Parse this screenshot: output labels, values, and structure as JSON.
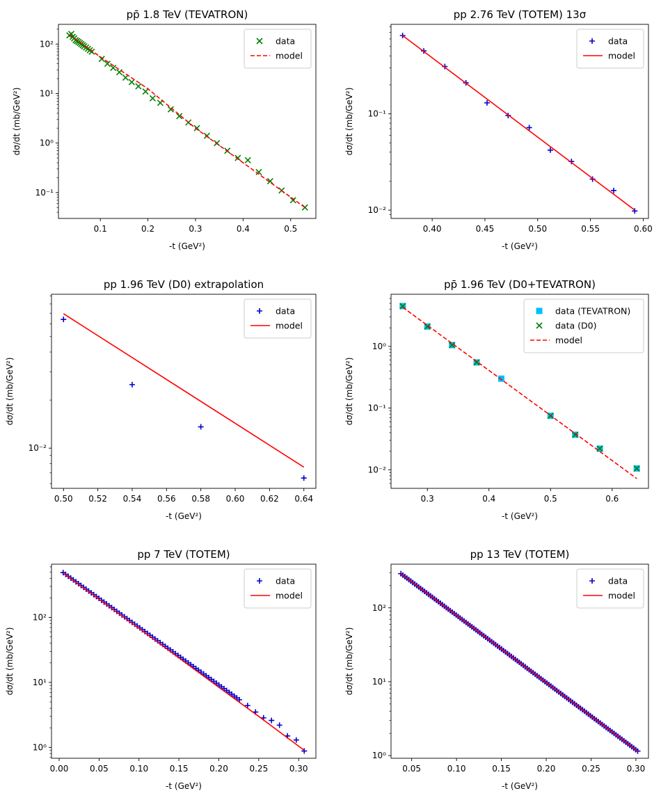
{
  "chart_data": [
    {
      "type": "scatter",
      "title": "pp̄ 1.8 TeV (TEVATRON)",
      "xlabel": "-t (GeV²)",
      "ylabel": "dσ/dt (mb/GeV²)",
      "yscale": "log",
      "xlim": [
        0.012,
        0.553
      ],
      "ylim": [
        0.03,
        250
      ],
      "xticks": [
        0.1,
        0.2,
        0.3,
        0.4,
        0.5
      ],
      "xticklabels": [
        "0.1",
        "0.2",
        "0.3",
        "0.4",
        "0.5"
      ],
      "yticks": [
        0.1,
        1,
        10,
        100
      ],
      "yticklabels": [
        "10⁻¹",
        "10⁰",
        "10¹",
        "10²"
      ],
      "legend_position": "top-right",
      "series": [
        {
          "name": "data",
          "kind": "points",
          "marker": "x",
          "color": "#008000",
          "x": [
            0.035,
            0.039,
            0.042,
            0.045,
            0.048,
            0.051,
            0.054,
            0.057,
            0.06,
            0.063,
            0.066,
            0.07,
            0.074,
            0.078,
            0.082,
            0.103,
            0.115,
            0.127,
            0.14,
            0.153,
            0.166,
            0.18,
            0.195,
            0.21,
            0.226,
            0.248,
            0.266,
            0.285,
            0.303,
            0.324,
            0.345,
            0.367,
            0.389,
            0.41,
            0.433,
            0.457,
            0.481,
            0.505,
            0.53
          ],
          "y": [
            150,
            160,
            140,
            130,
            120,
            115,
            110,
            105,
            100,
            95,
            90,
            85,
            80,
            75,
            70,
            50,
            40,
            33,
            27,
            21,
            17,
            14,
            11,
            8,
            6.5,
            4.8,
            3.5,
            2.6,
            2.0,
            1.4,
            1.0,
            0.7,
            0.5,
            0.45,
            0.26,
            0.17,
            0.11,
            0.07,
            0.05
          ]
        },
        {
          "name": "model",
          "kind": "line",
          "dash": "dashed",
          "color": "#ff0000",
          "x": [
            0.035,
            0.1,
            0.2,
            0.3,
            0.4,
            0.53
          ],
          "y": [
            155,
            55,
            12.5,
            2.0,
            0.4,
            0.05
          ]
        }
      ]
    },
    {
      "type": "scatter",
      "title": "pp 2.76 TeV (TOTEM) 13σ",
      "xlabel": "-t (GeV²)",
      "ylabel": "dσ/dt (mb/GeV²)",
      "yscale": "log",
      "xlim": [
        0.361,
        0.605
      ],
      "ylim": [
        0.0082,
        0.85
      ],
      "xticks": [
        0.4,
        0.45,
        0.5,
        0.55,
        0.6
      ],
      "xticklabels": [
        "0.40",
        "0.45",
        "0.50",
        "0.55",
        "0.60"
      ],
      "yticks": [
        0.01,
        0.1
      ],
      "yticklabels": [
        "10⁻²",
        "10⁻¹"
      ],
      "legend_position": "top-right",
      "series": [
        {
          "name": "data",
          "kind": "points",
          "marker": "+",
          "color": "#0000cc",
          "x": [
            0.372,
            0.392,
            0.412,
            0.432,
            0.452,
            0.472,
            0.492,
            0.512,
            0.532,
            0.552,
            0.572,
            0.592
          ],
          "y": [
            0.65,
            0.45,
            0.31,
            0.21,
            0.13,
            0.096,
            0.072,
            0.042,
            0.032,
            0.021,
            0.016,
            0.0098
          ]
        },
        {
          "name": "model",
          "kind": "line",
          "dash": "solid",
          "color": "#ff0000",
          "x": [
            0.372,
            0.592
          ],
          "y": [
            0.65,
            0.01
          ]
        }
      ]
    },
    {
      "type": "scatter",
      "title": "pp 1.96 TeV (D0) extrapolation",
      "xlabel": "-t (GeV²)",
      "ylabel": "dσ/dt (mb/GeV²)",
      "yscale": "log",
      "xlim": [
        0.493,
        0.647
      ],
      "ylim": [
        0.0056,
        0.092
      ],
      "xticks": [
        0.5,
        0.52,
        0.54,
        0.56,
        0.58,
        0.6,
        0.62,
        0.64
      ],
      "xticklabels": [
        "0.50",
        "0.52",
        "0.54",
        "0.56",
        "0.58",
        "0.60",
        "0.62",
        "0.64"
      ],
      "yticks": [
        0.01
      ],
      "yticklabels": [
        "10⁻²"
      ],
      "legend_position": "top-right",
      "series": [
        {
          "name": "data",
          "kind": "points",
          "marker": "+",
          "color": "#0000cc",
          "x": [
            0.5,
            0.54,
            0.58,
            0.64
          ],
          "y": [
            0.064,
            0.025,
            0.0136,
            0.0065
          ]
        },
        {
          "name": "model",
          "kind": "line",
          "dash": "solid",
          "color": "#ff0000",
          "x": [
            0.5,
            0.64
          ],
          "y": [
            0.0695,
            0.0076
          ]
        }
      ]
    },
    {
      "type": "scatter",
      "title": "pp̄ 1.96 TeV (D0+TEVATRON)",
      "xlabel": "-t (GeV²)",
      "ylabel": "dσ/dt (mb/GeV²)",
      "yscale": "log",
      "xlim": [
        0.241,
        0.659
      ],
      "ylim": [
        0.005,
        7.0
      ],
      "xticks": [
        0.3,
        0.4,
        0.5,
        0.6
      ],
      "xticklabels": [
        "0.3",
        "0.4",
        "0.5",
        "0.6"
      ],
      "yticks": [
        0.01,
        0.1,
        1
      ],
      "yticklabels": [
        "10⁻²",
        "10⁻¹",
        "10⁰"
      ],
      "legend_position": "top-right",
      "series": [
        {
          "name": "data (TEVATRON)",
          "kind": "points",
          "marker": "square",
          "color": "#00bfff",
          "x": [
            0.26,
            0.3,
            0.34,
            0.38,
            0.42,
            0.5,
            0.54,
            0.58,
            0.64
          ],
          "y": [
            4.5,
            2.1,
            1.05,
            0.55,
            0.3,
            0.075,
            0.037,
            0.022,
            0.0105
          ]
        },
        {
          "name": "data (D0)",
          "kind": "points",
          "marker": "x",
          "color": "#008000",
          "x": [
            0.26,
            0.3,
            0.34,
            0.38,
            0.5,
            0.54,
            0.58,
            0.64
          ],
          "y": [
            4.5,
            2.1,
            1.05,
            0.55,
            0.075,
            0.037,
            0.022,
            0.0105
          ]
        },
        {
          "name": "model",
          "kind": "line",
          "dash": "dashed",
          "color": "#ff0000",
          "x": [
            0.26,
            0.64
          ],
          "y": [
            4.3,
            0.0072
          ]
        }
      ]
    },
    {
      "type": "scatter",
      "title": "pp 7 TeV (TOTEM)",
      "xlabel": "-t (GeV²)",
      "ylabel": "dσ/dt (mb/GeV²)",
      "yscale": "log",
      "xlim": [
        -0.0096,
        0.3216
      ],
      "ylim": [
        0.68,
        660
      ],
      "xticks": [
        0,
        0.05,
        0.1,
        0.15,
        0.2,
        0.25,
        0.3
      ],
      "xticklabels": [
        "0.00",
        "0.05",
        "0.10",
        "0.15",
        "0.20",
        "0.25",
        "0.30"
      ],
      "yticks": [
        1,
        10,
        100
      ],
      "yticklabels": [
        "10⁰",
        "10¹",
        "10²"
      ],
      "legend_position": "top-right",
      "series": [
        {
          "name": "data",
          "kind": "points",
          "marker": "+",
          "color": "#0000cc",
          "generator": {
            "x0": 0.005,
            "x1": 0.225,
            "step": 0.0032,
            "y0": 490,
            "y1": 5.5,
            "log": true
          },
          "x": [
            0.236,
            0.246,
            0.256,
            0.266,
            0.276,
            0.286,
            0.297,
            0.307
          ],
          "y": [
            4.4,
            3.5,
            2.85,
            2.6,
            2.2,
            1.5,
            1.3,
            0.88
          ]
        },
        {
          "name": "model",
          "kind": "line",
          "dash": "solid",
          "color": "#ff0000",
          "x": [
            0.005,
            0.1,
            0.2,
            0.25,
            0.307
          ],
          "y": [
            480,
            68,
            8.4,
            3.0,
            0.9
          ]
        }
      ]
    },
    {
      "type": "scatter",
      "title": "pp 13 TeV (TOTEM)",
      "xlabel": "-t (GeV²)",
      "ylabel": "dσ/dt (mb/GeV²)",
      "yscale": "log",
      "xlim": [
        0.027,
        0.314
      ],
      "ylim": [
        0.92,
        390
      ],
      "xticks": [
        0.05,
        0.1,
        0.15,
        0.2,
        0.25,
        0.3
      ],
      "xticklabels": [
        "0.05",
        "0.10",
        "0.15",
        "0.20",
        "0.25",
        "0.30"
      ],
      "yticks": [
        1,
        10,
        100
      ],
      "yticklabels": [
        "10⁰",
        "10¹",
        "10²"
      ],
      "legend_position": "top-right",
      "series": [
        {
          "name": "data",
          "kind": "points",
          "marker": "+",
          "color": "#0000cc",
          "generator": {
            "x0": 0.038,
            "x1": 0.302,
            "step": 0.0022,
            "y0": 290,
            "y1": 1.15,
            "log": true
          },
          "x": [],
          "y": []
        },
        {
          "name": "model",
          "kind": "line",
          "dash": "solid",
          "color": "#ff0000",
          "x": [
            0.038,
            0.302
          ],
          "y": [
            290,
            1.15
          ]
        }
      ]
    }
  ]
}
